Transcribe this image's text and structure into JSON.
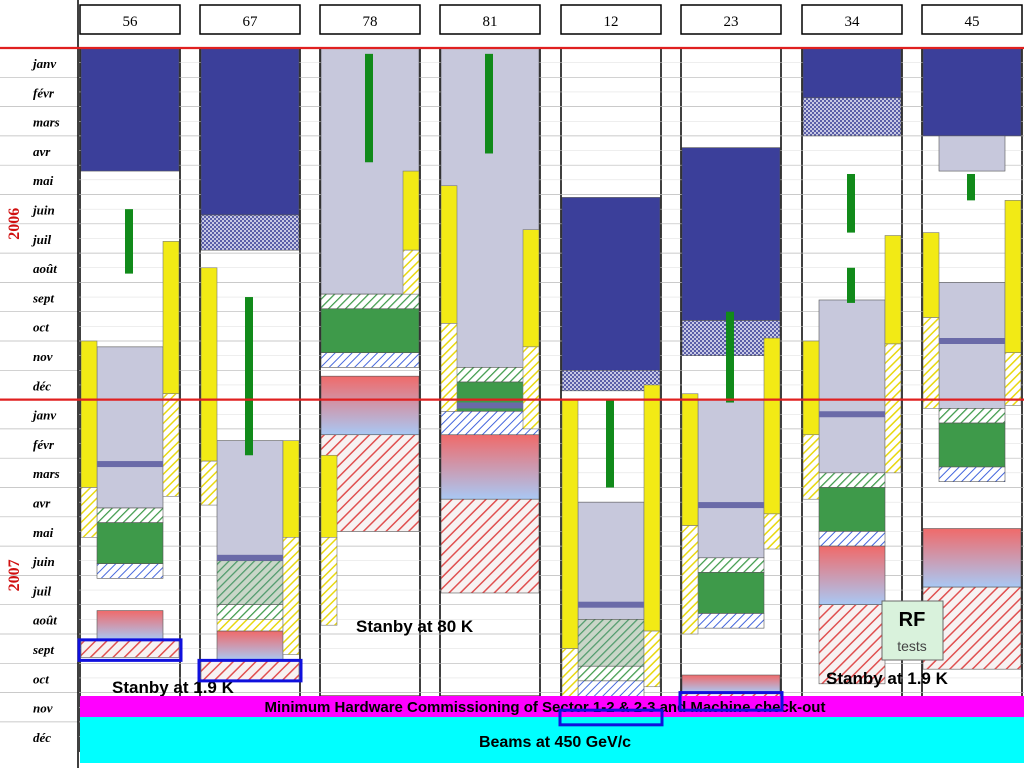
{
  "chart_data": {
    "type": "gantt",
    "title": "",
    "sectors": [
      "56",
      "67",
      "78",
      "81",
      "12",
      "23",
      "34",
      "45"
    ],
    "years": [
      "2006",
      "2007"
    ],
    "months": [
      "janv",
      "févr",
      "mars",
      "avr",
      "mai",
      "juin",
      "juil",
      "août",
      "sept",
      "oct",
      "nov",
      "déc",
      "janv",
      "févr",
      "mars",
      "avr",
      "mai",
      "juin",
      "juil",
      "août",
      "sept",
      "oct",
      "nov",
      "déc"
    ],
    "colors": {
      "navy": "#3b3f9a",
      "lavender": "#c7c8dc",
      "green": "#3e9a4a",
      "yellow": "#f2ea15",
      "ramp_top": "#f06a6a",
      "ramp_bottom": "#a9c8f4",
      "hatch_red": "#e05050",
      "hatch_green": "#3e9a4a",
      "hatch_blue": "#4466dd",
      "bar_green": "#118a1a",
      "magenta": "#ff00ff",
      "cyan": "#00ffff",
      "frame_blue": "#1010dd",
      "red_line": "#e02020"
    },
    "tasks": [
      {
        "sector": "56",
        "slot": "full",
        "type": "navy",
        "start": 0.0,
        "end": 4.2
      },
      {
        "sector": "56",
        "slot": "main",
        "type": "lavender",
        "start": 10.2,
        "end": 15.7
      },
      {
        "sector": "56",
        "slot": "main",
        "type": "hatch_green",
        "start": 15.7,
        "end": 16.2
      },
      {
        "sector": "56",
        "slot": "main",
        "type": "green",
        "start": 16.2,
        "end": 17.6
      },
      {
        "sector": "56",
        "slot": "main",
        "type": "hatch_blue",
        "start": 17.6,
        "end": 18.1
      },
      {
        "sector": "56",
        "slot": "main",
        "type": "ramp",
        "start": 19.2,
        "end": 20.2
      },
      {
        "sector": "56",
        "slot": "full",
        "type": "hatch_red",
        "start": 20.2,
        "end": 20.8
      },
      {
        "sector": "56",
        "slot": "left",
        "type": "yellow",
        "start": 10.0,
        "end": 15.0
      },
      {
        "sector": "56",
        "slot": "left",
        "type": "hatch_yellow",
        "start": 15.0,
        "end": 16.7
      },
      {
        "sector": "56",
        "slot": "right",
        "type": "yellow",
        "start": 6.6,
        "end": 11.8
      },
      {
        "sector": "56",
        "slot": "right",
        "type": "hatch_yellow",
        "start": 11.8,
        "end": 15.3
      },
      {
        "sector": "56",
        "slot": "bar",
        "type": "bar_green",
        "start": 5.5,
        "end": 7.7
      },
      {
        "sector": "67",
        "slot": "full",
        "type": "navy",
        "start": 0.0,
        "end": 5.7
      },
      {
        "sector": "67",
        "slot": "full",
        "type": "cross",
        "start": 5.7,
        "end": 6.9
      },
      {
        "sector": "67",
        "slot": "main",
        "type": "lavender",
        "start": 13.4,
        "end": 17.5
      },
      {
        "sector": "67",
        "slot": "main",
        "type": "hatch_teal",
        "start": 17.5,
        "end": 19.0
      },
      {
        "sector": "67",
        "slot": "main",
        "type": "hatch_green",
        "start": 19.0,
        "end": 19.5
      },
      {
        "sector": "67",
        "slot": "main",
        "type": "hatch_yellow",
        "start": 19.5,
        "end": 19.9
      },
      {
        "sector": "67",
        "slot": "main",
        "type": "ramp",
        "start": 19.9,
        "end": 20.9
      },
      {
        "sector": "67",
        "slot": "full",
        "type": "hatch_red",
        "start": 20.9,
        "end": 21.6
      },
      {
        "sector": "67",
        "slot": "left",
        "type": "yellow",
        "start": 7.5,
        "end": 14.1
      },
      {
        "sector": "67",
        "slot": "left",
        "type": "hatch_yellow",
        "start": 14.1,
        "end": 15.6
      },
      {
        "sector": "67",
        "slot": "right",
        "type": "yellow",
        "start": 13.4,
        "end": 16.7
      },
      {
        "sector": "67",
        "slot": "right",
        "type": "hatch_yellow",
        "start": 16.7,
        "end": 20.7
      },
      {
        "sector": "67",
        "slot": "bar",
        "type": "bar_green",
        "start": 8.5,
        "end": 13.9
      },
      {
        "sector": "78",
        "slot": "full",
        "type": "lavender",
        "start": 0.0,
        "end": 8.4
      },
      {
        "sector": "78",
        "slot": "full",
        "type": "hatch_green",
        "start": 8.4,
        "end": 8.9
      },
      {
        "sector": "78",
        "slot": "full",
        "type": "green",
        "start": 8.9,
        "end": 10.4
      },
      {
        "sector": "78",
        "slot": "full",
        "type": "hatch_blue",
        "start": 10.4,
        "end": 10.9
      },
      {
        "sector": "78",
        "slot": "full",
        "type": "ramp",
        "start": 11.2,
        "end": 13.2
      },
      {
        "sector": "78",
        "slot": "full",
        "type": "hatch_red",
        "start": 13.2,
        "end": 16.5
      },
      {
        "sector": "78",
        "slot": "full",
        "type": "ramp",
        "start": 22.1,
        "end": 22.8
      },
      {
        "sector": "78",
        "slot": "left",
        "type": "yellow",
        "start": 13.9,
        "end": 16.7
      },
      {
        "sector": "78",
        "slot": "left",
        "type": "hatch_yellow",
        "start": 16.7,
        "end": 19.7
      },
      {
        "sector": "78",
        "slot": "right",
        "type": "yellow",
        "start": 4.2,
        "end": 6.9
      },
      {
        "sector": "78",
        "slot": "right",
        "type": "hatch_yellow",
        "start": 6.9,
        "end": 8.4
      },
      {
        "sector": "78",
        "slot": "bar",
        "type": "bar_green",
        "start": 0.2,
        "end": 3.9
      },
      {
        "sector": "81",
        "slot": "full",
        "type": "lavender",
        "start": 0.0,
        "end": 10.9
      },
      {
        "sector": "81",
        "slot": "full",
        "type": "hatch_green",
        "start": 10.9,
        "end": 11.4
      },
      {
        "sector": "81",
        "slot": "full",
        "type": "green",
        "start": 11.4,
        "end": 12.4
      },
      {
        "sector": "81",
        "slot": "full",
        "type": "hatch_blue",
        "start": 12.4,
        "end": 13.2
      },
      {
        "sector": "81",
        "slot": "full",
        "type": "ramp",
        "start": 13.2,
        "end": 15.4
      },
      {
        "sector": "81",
        "slot": "full",
        "type": "hatch_red",
        "start": 15.4,
        "end": 18.6
      },
      {
        "sector": "81",
        "slot": "full",
        "type": "ramp",
        "start": 22.1,
        "end": 22.8
      },
      {
        "sector": "81",
        "slot": "left",
        "type": "yellow",
        "start": 4.7,
        "end": 9.4
      },
      {
        "sector": "81",
        "slot": "left",
        "type": "hatch_yellow",
        "start": 9.4,
        "end": 12.4
      },
      {
        "sector": "81",
        "slot": "right",
        "type": "yellow",
        "start": 6.2,
        "end": 10.2
      },
      {
        "sector": "81",
        "slot": "right",
        "type": "hatch_yellow",
        "start": 10.2,
        "end": 13.0
      },
      {
        "sector": "81",
        "slot": "bar",
        "type": "bar_green",
        "start": 0.2,
        "end": 3.6
      },
      {
        "sector": "12",
        "slot": "full",
        "type": "navy",
        "start": 5.1,
        "end": 11.0
      },
      {
        "sector": "12",
        "slot": "full",
        "type": "cross",
        "start": 11.0,
        "end": 11.7
      },
      {
        "sector": "12",
        "slot": "main",
        "type": "lavender",
        "start": 15.5,
        "end": 19.5
      },
      {
        "sector": "12",
        "slot": "main",
        "type": "hatch_teal",
        "start": 19.5,
        "end": 21.1
      },
      {
        "sector": "12",
        "slot": "main",
        "type": "hatch_green",
        "start": 21.1,
        "end": 21.6
      },
      {
        "sector": "12",
        "slot": "main",
        "type": "hatch_blue",
        "start": 21.6,
        "end": 22.2
      },
      {
        "sector": "12",
        "slot": "full",
        "type": "ramp",
        "start": 22.2,
        "end": 23.0
      },
      {
        "sector": "12",
        "slot": "left",
        "type": "yellow",
        "start": 12.0,
        "end": 20.5
      },
      {
        "sector": "12",
        "slot": "left",
        "type": "hatch_yellow",
        "start": 20.5,
        "end": 22.2
      },
      {
        "sector": "12",
        "slot": "right",
        "type": "yellow",
        "start": 11.5,
        "end": 19.9
      },
      {
        "sector": "12",
        "slot": "right",
        "type": "hatch_yellow",
        "start": 19.9,
        "end": 21.8
      },
      {
        "sector": "12",
        "slot": "bar",
        "type": "bar_green",
        "start": 12.0,
        "end": 15.0
      },
      {
        "sector": "23",
        "slot": "full",
        "type": "navy",
        "start": 3.4,
        "end": 9.3
      },
      {
        "sector": "23",
        "slot": "full",
        "type": "cross",
        "start": 9.3,
        "end": 10.5
      },
      {
        "sector": "23",
        "slot": "main",
        "type": "lavender",
        "start": 12.0,
        "end": 17.4
      },
      {
        "sector": "23",
        "slot": "main",
        "type": "hatch_green",
        "start": 17.4,
        "end": 17.9
      },
      {
        "sector": "23",
        "slot": "main",
        "type": "green",
        "start": 17.9,
        "end": 19.3
      },
      {
        "sector": "23",
        "slot": "main",
        "type": "hatch_blue",
        "start": 19.3,
        "end": 19.8
      },
      {
        "sector": "23",
        "slot": "full",
        "type": "ramp",
        "start": 21.4,
        "end": 22.0
      },
      {
        "sector": "23",
        "slot": "full",
        "type": "hatch_red",
        "start": 22.0,
        "end": 22.5
      },
      {
        "sector": "23",
        "slot": "left",
        "type": "yellow",
        "start": 11.8,
        "end": 16.3
      },
      {
        "sector": "23",
        "slot": "left",
        "type": "hatch_yellow",
        "start": 16.3,
        "end": 20.0
      },
      {
        "sector": "23",
        "slot": "right",
        "type": "yellow",
        "start": 9.9,
        "end": 15.9
      },
      {
        "sector": "23",
        "slot": "right",
        "type": "hatch_yellow",
        "start": 15.9,
        "end": 17.1
      },
      {
        "sector": "23",
        "slot": "bar",
        "type": "bar_green",
        "start": 9.0,
        "end": 12.1
      },
      {
        "sector": "34",
        "slot": "full",
        "type": "navy",
        "start": 0.0,
        "end": 1.7
      },
      {
        "sector": "34",
        "slot": "full",
        "type": "cross",
        "start": 1.7,
        "end": 3.0
      },
      {
        "sector": "34",
        "slot": "main",
        "type": "lavender",
        "start": 8.6,
        "end": 14.5
      },
      {
        "sector": "34",
        "slot": "main",
        "type": "hatch_green",
        "start": 14.5,
        "end": 15.0
      },
      {
        "sector": "34",
        "slot": "main",
        "type": "green",
        "start": 15.0,
        "end": 16.5
      },
      {
        "sector": "34",
        "slot": "main",
        "type": "hatch_blue",
        "start": 16.5,
        "end": 17.0
      },
      {
        "sector": "34",
        "slot": "main",
        "type": "ramp",
        "start": 17.0,
        "end": 19.0
      },
      {
        "sector": "34",
        "slot": "main",
        "type": "hatch_red",
        "start": 19.0,
        "end": 21.7
      },
      {
        "sector": "34",
        "slot": "left",
        "type": "yellow",
        "start": 10.0,
        "end": 13.2
      },
      {
        "sector": "34",
        "slot": "left",
        "type": "hatch_yellow",
        "start": 13.2,
        "end": 15.4
      },
      {
        "sector": "34",
        "slot": "right",
        "type": "yellow",
        "start": 6.4,
        "end": 10.1
      },
      {
        "sector": "34",
        "slot": "right",
        "type": "hatch_yellow",
        "start": 10.1,
        "end": 14.5
      },
      {
        "sector": "34",
        "slot": "bar",
        "type": "bar_green",
        "start": 4.3,
        "end": 6.3
      },
      {
        "sector": "34",
        "slot": "bar",
        "type": "bar_green",
        "start": 7.5,
        "end": 8.7
      },
      {
        "sector": "45",
        "slot": "full",
        "type": "navy",
        "start": 0.0,
        "end": 3.0
      },
      {
        "sector": "45",
        "slot": "main",
        "type": "lavender",
        "start": 3.0,
        "end": 4.2
      },
      {
        "sector": "45",
        "slot": "main",
        "type": "lavender",
        "start": 8.0,
        "end": 12.3
      },
      {
        "sector": "45",
        "slot": "main",
        "type": "hatch_green",
        "start": 12.3,
        "end": 12.8
      },
      {
        "sector": "45",
        "slot": "main",
        "type": "green",
        "start": 12.8,
        "end": 14.3
      },
      {
        "sector": "45",
        "slot": "main",
        "type": "hatch_blue",
        "start": 14.3,
        "end": 14.8
      },
      {
        "sector": "45",
        "slot": "full",
        "type": "ramp",
        "start": 16.4,
        "end": 18.4
      },
      {
        "sector": "45",
        "slot": "full",
        "type": "hatch_red",
        "start": 18.4,
        "end": 21.2
      },
      {
        "sector": "45",
        "slot": "left",
        "type": "yellow",
        "start": 6.3,
        "end": 9.2
      },
      {
        "sector": "45",
        "slot": "left",
        "type": "hatch_yellow",
        "start": 9.2,
        "end": 12.3
      },
      {
        "sector": "45",
        "slot": "right",
        "type": "yellow",
        "start": 5.2,
        "end": 10.4
      },
      {
        "sector": "45",
        "slot": "right",
        "type": "hatch_yellow",
        "start": 10.4,
        "end": 12.2
      },
      {
        "sector": "45",
        "slot": "bar",
        "type": "bar_green",
        "start": 4.3,
        "end": 5.2
      }
    ],
    "markers": [
      {
        "sector": "56",
        "at": 14.2
      },
      {
        "sector": "67",
        "at": 17.4
      },
      {
        "sector": "81",
        "at": 12.2
      },
      {
        "sector": "12",
        "at": 19.0
      },
      {
        "sector": "23",
        "at": 15.6
      },
      {
        "sector": "34",
        "at": 12.5
      },
      {
        "sector": "45",
        "at": 10.0
      }
    ],
    "blue_frames": [
      {
        "sector": "56",
        "start": 20.2,
        "end": 20.9
      },
      {
        "sector": "67",
        "start": 20.9,
        "end": 21.6
      },
      {
        "sector": "12",
        "start": 22.6,
        "end": 23.1
      },
      {
        "sector": "23",
        "start": 22.0,
        "end": 22.6
      }
    ],
    "bands": [
      {
        "label": "Minimum Hardware Commissioning of Sector 1-2 & 2-3 and Machine check-out",
        "start": 22.6,
        "end": 23.3,
        "color": "magenta"
      },
      {
        "label": "Beams at 450 GeV/c",
        "start": 23.3,
        "end": 24.8,
        "color": "cyan"
      }
    ],
    "annotations": [
      {
        "text": "Stanby at 1.9 K",
        "near": "56"
      },
      {
        "text": "Stanby at 80 K",
        "near": "78"
      },
      {
        "text": "Stanby at 1.9 K",
        "near": "45"
      }
    ],
    "rf_box": {
      "title": "RF",
      "subtitle": "tests"
    }
  }
}
